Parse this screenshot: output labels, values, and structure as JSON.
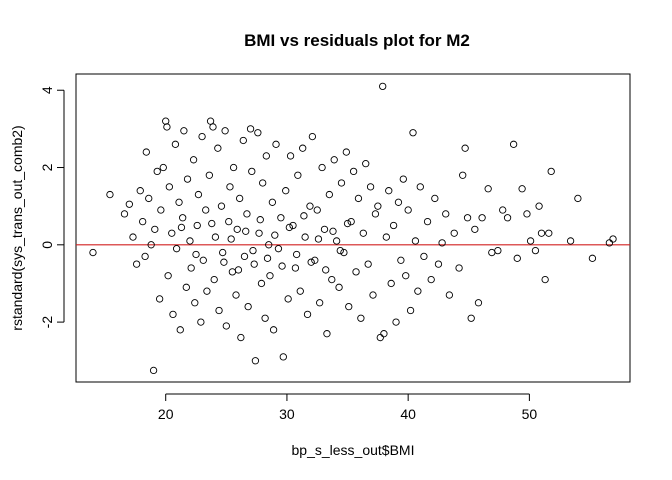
{
  "chart_data": {
    "type": "scatter",
    "title": "BMI vs residuals plot for M2",
    "xlabel": "bp_s_less_out$BMI",
    "ylabel": "rstandard(sys_trans_out_comb2)",
    "xlim": [
      12.6,
      58.3
    ],
    "ylim": [
      -3.55,
      4.42
    ],
    "x_ticks": [
      20,
      30,
      40,
      50
    ],
    "y_ticks": [
      -2,
      0,
      2,
      4
    ],
    "x_tick_labels": [
      "20",
      "30",
      "40",
      "50"
    ],
    "y_tick_labels": [
      "-2",
      "0",
      "2",
      "4"
    ],
    "reference_line": {
      "y": 0,
      "color": "#d22020"
    },
    "point_color": "#000000",
    "grid": false,
    "points": [
      [
        14.0,
        -0.2
      ],
      [
        15.4,
        1.3
      ],
      [
        16.6,
        0.8
      ],
      [
        17.0,
        1.05
      ],
      [
        17.3,
        0.2
      ],
      [
        17.6,
        -0.5
      ],
      [
        17.9,
        1.4
      ],
      [
        18.1,
        0.6
      ],
      [
        18.3,
        -0.3
      ],
      [
        18.4,
        2.4
      ],
      [
        18.6,
        1.2
      ],
      [
        18.8,
        0.0
      ],
      [
        19.0,
        -3.25
      ],
      [
        19.1,
        0.4
      ],
      [
        19.3,
        1.9
      ],
      [
        19.5,
        -1.4
      ],
      [
        19.6,
        0.9
      ],
      [
        19.8,
        2.0
      ],
      [
        20.0,
        3.2
      ],
      [
        20.1,
        3.05
      ],
      [
        20.2,
        -0.8
      ],
      [
        20.3,
        1.5
      ],
      [
        20.5,
        0.3
      ],
      [
        20.6,
        -1.8
      ],
      [
        20.8,
        2.6
      ],
      [
        20.9,
        -0.1
      ],
      [
        21.1,
        1.1
      ],
      [
        21.2,
        -2.2
      ],
      [
        21.4,
        0.7
      ],
      [
        21.5,
        2.95
      ],
      [
        21.7,
        -1.1
      ],
      [
        21.8,
        1.7
      ],
      [
        22.0,
        0.1
      ],
      [
        22.1,
        -0.6
      ],
      [
        22.3,
        2.2
      ],
      [
        22.4,
        -1.5
      ],
      [
        22.6,
        0.5
      ],
      [
        22.7,
        1.3
      ],
      [
        22.9,
        -2.0
      ],
      [
        23.0,
        2.8
      ],
      [
        23.1,
        -0.4
      ],
      [
        23.3,
        0.9
      ],
      [
        23.4,
        -1.2
      ],
      [
        23.6,
        1.8
      ],
      [
        23.7,
        3.2
      ],
      [
        23.9,
        3.05
      ],
      [
        24.0,
        -0.9
      ],
      [
        24.1,
        0.2
      ],
      [
        24.3,
        2.5
      ],
      [
        24.4,
        -1.7
      ],
      [
        24.6,
        1.0
      ],
      [
        24.7,
        -0.2
      ],
      [
        24.9,
        2.95
      ],
      [
        25.0,
        -2.1
      ],
      [
        25.2,
        0.6
      ],
      [
        25.3,
        1.5
      ],
      [
        25.5,
        -0.7
      ],
      [
        25.6,
        2.0
      ],
      [
        25.8,
        -1.3
      ],
      [
        25.9,
        0.4
      ],
      [
        26.1,
        1.2
      ],
      [
        26.2,
        -2.4
      ],
      [
        26.4,
        2.7
      ],
      [
        26.5,
        -0.3
      ],
      [
        26.7,
        0.8
      ],
      [
        26.8,
        -1.6
      ],
      [
        27.0,
        3.0
      ],
      [
        27.1,
        1.9
      ],
      [
        27.3,
        -0.5
      ],
      [
        27.4,
        -3.0
      ],
      [
        27.6,
        2.9
      ],
      [
        27.7,
        0.3
      ],
      [
        27.9,
        -1.0
      ],
      [
        28.0,
        1.6
      ],
      [
        28.2,
        -1.9
      ],
      [
        28.3,
        2.3
      ],
      [
        28.5,
        0.0
      ],
      [
        28.6,
        -0.8
      ],
      [
        28.8,
        1.1
      ],
      [
        28.9,
        -2.2
      ],
      [
        29.1,
        2.6
      ],
      [
        29.3,
        -0.1
      ],
      [
        29.5,
        0.7
      ],
      [
        29.7,
        -2.9
      ],
      [
        29.9,
        1.4
      ],
      [
        30.1,
        -1.4
      ],
      [
        30.3,
        2.3
      ],
      [
        30.5,
        0.5
      ],
      [
        30.7,
        -0.6
      ],
      [
        30.9,
        1.8
      ],
      [
        31.1,
        -1.2
      ],
      [
        31.3,
        2.5
      ],
      [
        31.5,
        0.2
      ],
      [
        31.7,
        -1.8
      ],
      [
        31.9,
        1.0
      ],
      [
        32.1,
        2.8
      ],
      [
        32.3,
        -0.4
      ],
      [
        32.5,
        0.9
      ],
      [
        32.7,
        -1.5
      ],
      [
        32.9,
        2.0
      ],
      [
        33.1,
        0.4
      ],
      [
        33.3,
        -2.3
      ],
      [
        33.5,
        1.3
      ],
      [
        33.7,
        -0.9
      ],
      [
        33.9,
        2.2
      ],
      [
        34.1,
        0.1
      ],
      [
        34.3,
        -1.1
      ],
      [
        34.5,
        1.6
      ],
      [
        34.7,
        -0.2
      ],
      [
        34.9,
        2.4
      ],
      [
        35.1,
        -1.6
      ],
      [
        35.3,
        0.6
      ],
      [
        35.5,
        1.9
      ],
      [
        35.7,
        -0.7
      ],
      [
        35.9,
        1.2
      ],
      [
        36.1,
        -1.9
      ],
      [
        36.3,
        0.3
      ],
      [
        36.5,
        2.1
      ],
      [
        36.7,
        -0.5
      ],
      [
        36.9,
        1.5
      ],
      [
        37.1,
        -1.3
      ],
      [
        37.3,
        0.8
      ],
      [
        37.5,
        1.0
      ],
      [
        37.7,
        -2.4
      ],
      [
        37.9,
        4.1
      ],
      [
        38.0,
        -2.3
      ],
      [
        38.2,
        0.2
      ],
      [
        38.4,
        1.4
      ],
      [
        38.6,
        -1.0
      ],
      [
        38.8,
        0.5
      ],
      [
        39.0,
        -2.0
      ],
      [
        39.2,
        1.1
      ],
      [
        39.4,
        -0.4
      ],
      [
        39.6,
        1.7
      ],
      [
        39.8,
        -0.8
      ],
      [
        40.0,
        0.9
      ],
      [
        40.2,
        -1.7
      ],
      [
        40.4,
        2.9
      ],
      [
        40.6,
        0.1
      ],
      [
        40.8,
        -1.2
      ],
      [
        41.0,
        1.5
      ],
      [
        41.3,
        -0.3
      ],
      [
        41.6,
        0.6
      ],
      [
        41.9,
        -0.9
      ],
      [
        42.2,
        1.2
      ],
      [
        42.5,
        -0.5
      ],
      [
        42.8,
        0.05
      ],
      [
        43.1,
        0.8
      ],
      [
        43.4,
        -1.3
      ],
      [
        43.8,
        0.3
      ],
      [
        44.2,
        -0.6
      ],
      [
        44.5,
        1.8
      ],
      [
        44.7,
        2.5
      ],
      [
        44.9,
        0.7
      ],
      [
        45.2,
        -1.9
      ],
      [
        45.5,
        0.4
      ],
      [
        45.8,
        -1.5
      ],
      [
        46.1,
        0.7
      ],
      [
        46.6,
        1.45
      ],
      [
        46.9,
        -0.2
      ],
      [
        47.4,
        -0.15
      ],
      [
        47.8,
        0.9
      ],
      [
        48.2,
        0.7
      ],
      [
        48.7,
        2.6
      ],
      [
        49.0,
        -0.35
      ],
      [
        49.4,
        1.45
      ],
      [
        49.8,
        0.8
      ],
      [
        50.1,
        0.1
      ],
      [
        50.5,
        -0.15
      ],
      [
        50.8,
        1.0
      ],
      [
        51.0,
        0.3
      ],
      [
        51.3,
        -0.9
      ],
      [
        51.6,
        0.3
      ],
      [
        51.8,
        1.9
      ],
      [
        53.4,
        0.1
      ],
      [
        54.0,
        1.2
      ],
      [
        55.2,
        -0.35
      ],
      [
        56.6,
        0.05
      ],
      [
        56.9,
        0.15
      ],
      [
        21.3,
        0.45
      ],
      [
        22.5,
        -0.25
      ],
      [
        23.8,
        0.55
      ],
      [
        24.8,
        -0.45
      ],
      [
        25.4,
        0.15
      ],
      [
        26.0,
        -0.65
      ],
      [
        26.6,
        0.35
      ],
      [
        27.2,
        -0.15
      ],
      [
        27.8,
        0.65
      ],
      [
        28.4,
        -0.35
      ],
      [
        29.0,
        0.25
      ],
      [
        29.6,
        -0.55
      ],
      [
        30.2,
        0.45
      ],
      [
        30.8,
        -0.25
      ],
      [
        31.4,
        0.75
      ],
      [
        32.0,
        -0.45
      ],
      [
        32.6,
        0.15
      ],
      [
        33.2,
        -0.65
      ],
      [
        33.8,
        0.35
      ],
      [
        34.4,
        -0.15
      ],
      [
        35.0,
        0.55
      ]
    ]
  }
}
